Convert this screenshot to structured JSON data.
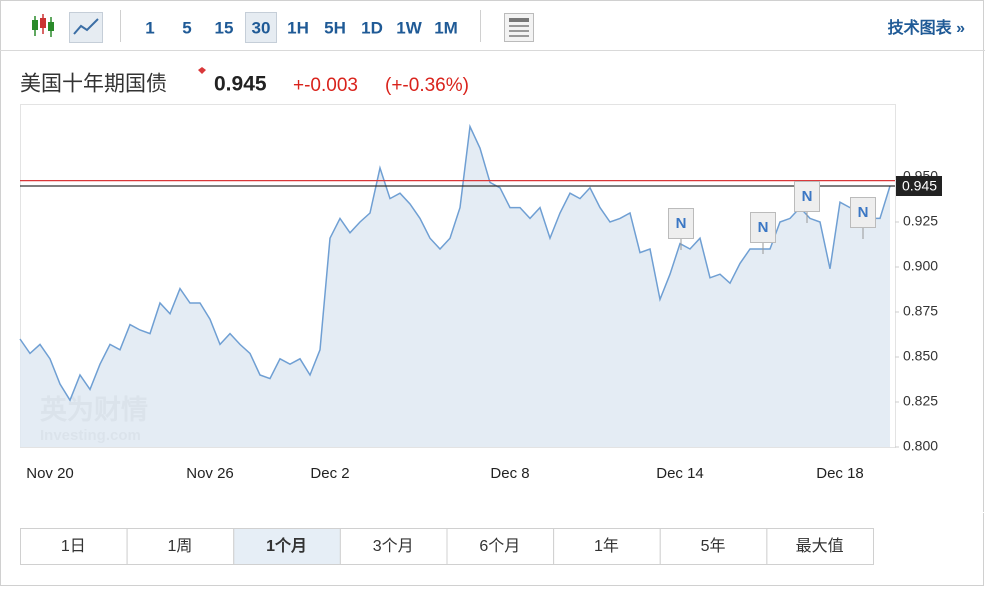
{
  "toolbar": {
    "intervals": [
      "1",
      "5",
      "15",
      "30",
      "1H",
      "5H",
      "1D",
      "1W",
      "1M"
    ],
    "selected_interval": "30",
    "tech_chart_link": "技术图表 »"
  },
  "header": {
    "title": "美国十年期国债",
    "price": "0.945",
    "change": "+-0.003",
    "change_percent": "(+-0.36%)"
  },
  "chart_data": {
    "type": "line",
    "categories": [
      null,
      null,
      null,
      "Nov 20",
      null,
      null,
      null,
      null,
      null,
      null,
      null,
      null,
      null,
      null,
      null,
      null,
      null,
      null,
      null,
      "Nov 26",
      null,
      null,
      null,
      null,
      null,
      null,
      null,
      null,
      null,
      null,
      null,
      "Dec 2",
      null,
      null,
      null,
      null,
      null,
      null,
      null,
      null,
      null,
      null,
      null,
      null,
      null,
      null,
      null,
      null,
      null,
      "Dec 8",
      null,
      null,
      null,
      null,
      null,
      null,
      null,
      null,
      null,
      null,
      null,
      null,
      null,
      null,
      null,
      null,
      "Dec 14",
      null,
      null,
      null,
      null,
      null,
      null,
      null,
      null,
      null,
      null,
      null,
      null,
      null,
      null,
      null,
      "Dec 18",
      null,
      null,
      null,
      null,
      null
    ],
    "series": [
      {
        "name": "美国十年期国债",
        "color": "#6f9fd3",
        "values": [
          0.86,
          0.852,
          0.857,
          0.849,
          0.835,
          0.826,
          0.84,
          0.832,
          0.846,
          0.857,
          0.854,
          0.868,
          0.865,
          0.863,
          0.88,
          0.874,
          0.888,
          0.88,
          0.88,
          0.871,
          0.857,
          0.863,
          0.857,
          0.852,
          0.84,
          0.838,
          0.849,
          0.846,
          0.849,
          0.84,
          0.854,
          0.916,
          0.927,
          0.919,
          0.925,
          0.93,
          0.955,
          0.938,
          0.941,
          0.935,
          0.927,
          0.916,
          0.91,
          0.916,
          0.933,
          0.978,
          0.966,
          0.947,
          0.944,
          0.933,
          0.933,
          0.927,
          0.933,
          0.916,
          0.93,
          0.941,
          0.938,
          0.944,
          0.933,
          0.925,
          0.927,
          0.93,
          0.908,
          0.91,
          0.882,
          0.896,
          0.913,
          0.91,
          0.916,
          0.894,
          0.896,
          0.891,
          0.902,
          0.91,
          0.91,
          0.91,
          0.925,
          0.927,
          0.933,
          0.927,
          0.925,
          0.899,
          0.936,
          0.933,
          0.93,
          0.927,
          0.927,
          0.945
        ]
      }
    ],
    "ylim": [
      0.8,
      0.99
    ],
    "yticks": [
      {
        "value": 0.8,
        "label": "0.800"
      },
      {
        "value": 0.825,
        "label": "0.825"
      },
      {
        "value": 0.85,
        "label": "0.850"
      },
      {
        "value": 0.875,
        "label": "0.875"
      },
      {
        "value": 0.9,
        "label": "0.900"
      },
      {
        "value": 0.925,
        "label": "0.925"
      },
      {
        "value": 0.95,
        "label": "0.950"
      }
    ],
    "grid": false,
    "reference_line": {
      "value": 0.948,
      "color": "#d9383a"
    },
    "last_value": 0.945,
    "news_label": "N",
    "watermark": [
      "英为财情",
      "Investing.com"
    ]
  },
  "ranges": {
    "items": [
      "1日",
      "1周",
      "1个月",
      "3个月",
      "6个月",
      "1年",
      "5年",
      "最大值"
    ],
    "selected": "1个月"
  }
}
